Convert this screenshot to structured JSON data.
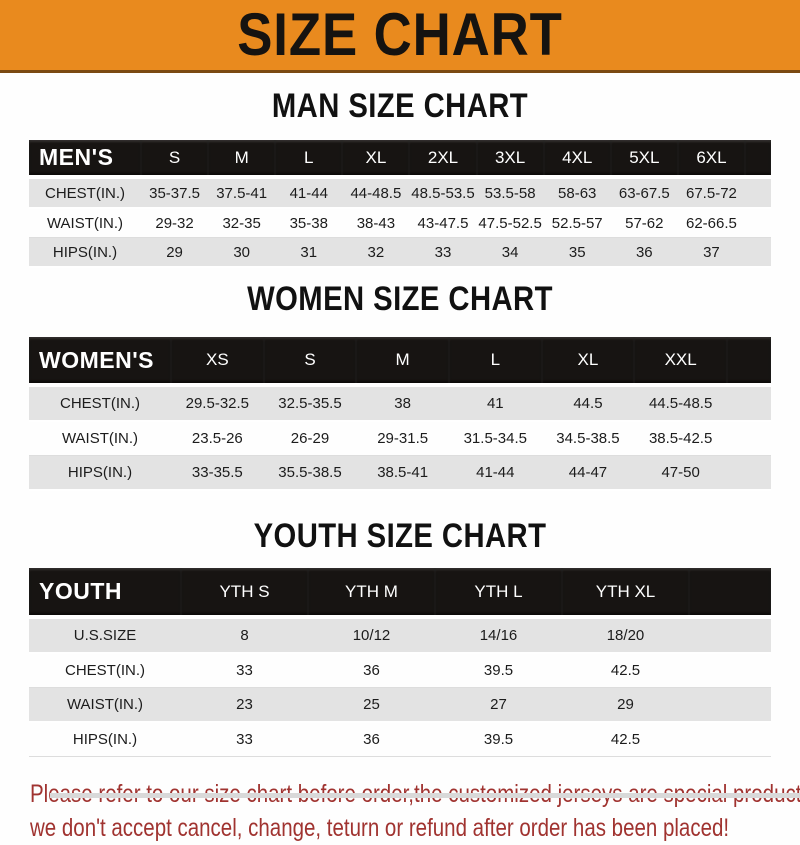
{
  "banner": {
    "title": "SIZE CHART"
  },
  "colors": {
    "banner_bg": "#E98A1E",
    "banner_border": "#7B4A12",
    "header_bar_bg": "#171412",
    "header_bar_text": "#FFFFFF",
    "row_alt_bg": "#E3E3E3",
    "heading_text": "#111111",
    "footer_text": "#A03330"
  },
  "sections": [
    {
      "heading": "MAN SIZE CHART",
      "table": {
        "header_label": "MEN'S",
        "header_cols": [
          "S",
          "M",
          "L",
          "XL",
          "2XL",
          "3XL",
          "4XL",
          "5XL",
          "6XL"
        ],
        "rows": [
          {
            "label": "CHEST(IN.)",
            "values": [
              "35-37.5",
              "37.5-41",
              "41-44",
              "44-48.5",
              "48.5-53.5",
              "53.5-58",
              "58-63",
              "63-67.5",
              "67.5-72"
            ]
          },
          {
            "label": "WAIST(IN.)",
            "values": [
              "29-32",
              "32-35",
              "35-38",
              "38-43",
              "43-47.5",
              "47.5-52.5",
              "52.5-57",
              "57-62",
              "62-66.5"
            ]
          },
          {
            "label": "HIPS(IN.)",
            "values": [
              "29",
              "30",
              "31",
              "32",
              "33",
              "34",
              "35",
              "36",
              "37"
            ]
          }
        ]
      }
    },
    {
      "heading": "WOMEN SIZE CHART",
      "table": {
        "header_label": "WOMEN'S",
        "header_cols": [
          "XS",
          "S",
          "M",
          "L",
          "XL",
          "XXL"
        ],
        "rows": [
          {
            "label": "CHEST(IN.)",
            "values": [
              "29.5-32.5",
              "32.5-35.5",
              "38",
              "41",
              "44.5",
              "44.5-48.5"
            ]
          },
          {
            "label": "WAIST(IN.)",
            "values": [
              "23.5-26",
              "26-29",
              "29-31.5",
              "31.5-34.5",
              "34.5-38.5",
              "38.5-42.5"
            ]
          },
          {
            "label": "HIPS(IN.)",
            "values": [
              "33-35.5",
              "35.5-38.5",
              "38.5-41",
              "41-44",
              "44-47",
              "47-50"
            ]
          }
        ]
      }
    },
    {
      "heading": "YOUTH SIZE CHART",
      "table": {
        "header_label": "YOUTH",
        "header_cols": [
          "YTH S",
          "YTH M",
          "YTH L",
          "YTH XL"
        ],
        "rows": [
          {
            "label": "U.S.SIZE",
            "values": [
              "8",
              "10/12",
              "14/16",
              "18/20"
            ]
          },
          {
            "label": "CHEST(IN.)",
            "values": [
              "33",
              "36",
              "39.5",
              "42.5"
            ]
          },
          {
            "label": "WAIST(IN.)",
            "values": [
              "23",
              "25",
              "27",
              "29"
            ]
          },
          {
            "label": "HIPS(IN.)",
            "values": [
              "33",
              "36",
              "39.5",
              "42.5"
            ]
          }
        ]
      }
    }
  ],
  "footer": {
    "line1": "Please refer to our size chart before order,the customized jerseys are special products,",
    "line2": "we don't accept cancel, change, teturn or refund after order has been placed!"
  }
}
